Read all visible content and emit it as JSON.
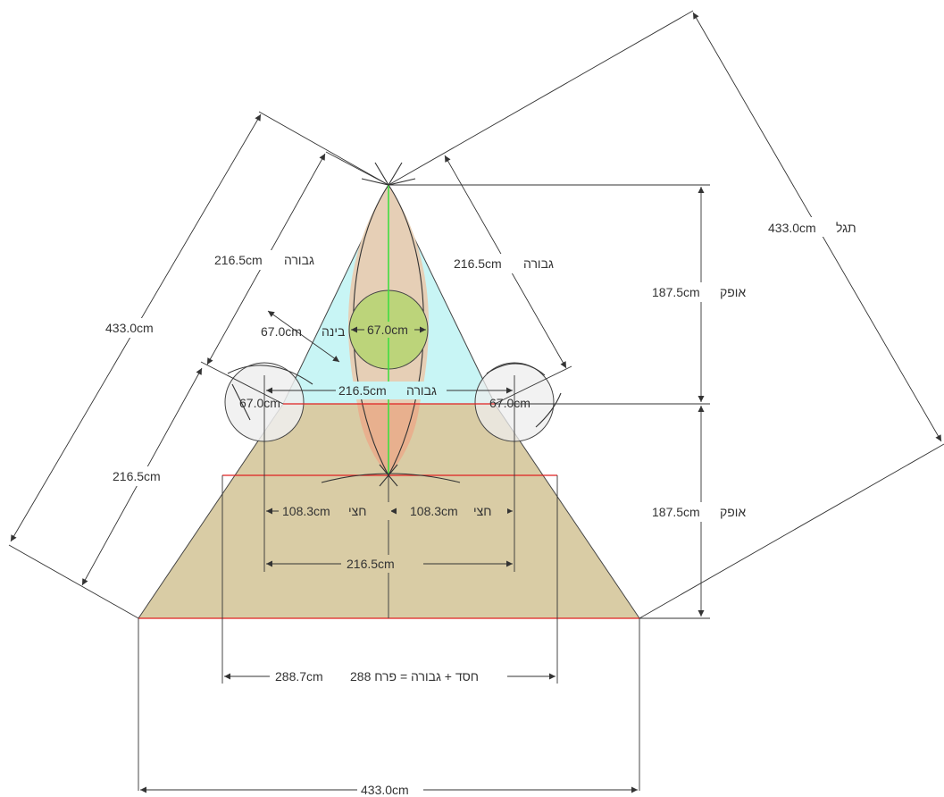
{
  "diagram": {
    "colors": {
      "triangle": "#c8f5f5",
      "trapezoid": "#d9cca5",
      "circle_green": "#bcd47a",
      "lens_top": "#e6cfb6",
      "lens_bottom": "#e8b08e",
      "side_circle": "#eeeeee",
      "red_line": "#e02020",
      "green_axis": "#40dd40"
    },
    "labels": {
      "left_outer": "433.0cm",
      "left_upper_value": "216.5cm",
      "left_upper_word": "גבורה",
      "left_lower": "216.5cm",
      "right_inner_value": "216.5cm",
      "right_inner_word": "גבורה",
      "diag_value": "433.0cm",
      "diag_word": "תגל",
      "binah_value": "67.0cm",
      "binah_word": "בינה",
      "center_circle": "67.0cm",
      "mid_value": "216.5cm",
      "mid_word": "גבורה",
      "left_circle": "67.0cm",
      "right_circle": "67.0cm",
      "ofek_top_value": "187.5cm",
      "ofek_top_word": "אופק",
      "ofek_bottom_value": "187.5cm",
      "ofek_bottom_word": "אופק",
      "half_left_value": "108.3cm",
      "half_left_word": "חצי",
      "half_right_value": "108.3cm",
      "half_right_word": "חצי",
      "span_inner": "216.5cm",
      "perach_value": "288.7cm",
      "perach_formula": "288 חסד + גבורה = פרח",
      "base": "433.0cm"
    }
  }
}
